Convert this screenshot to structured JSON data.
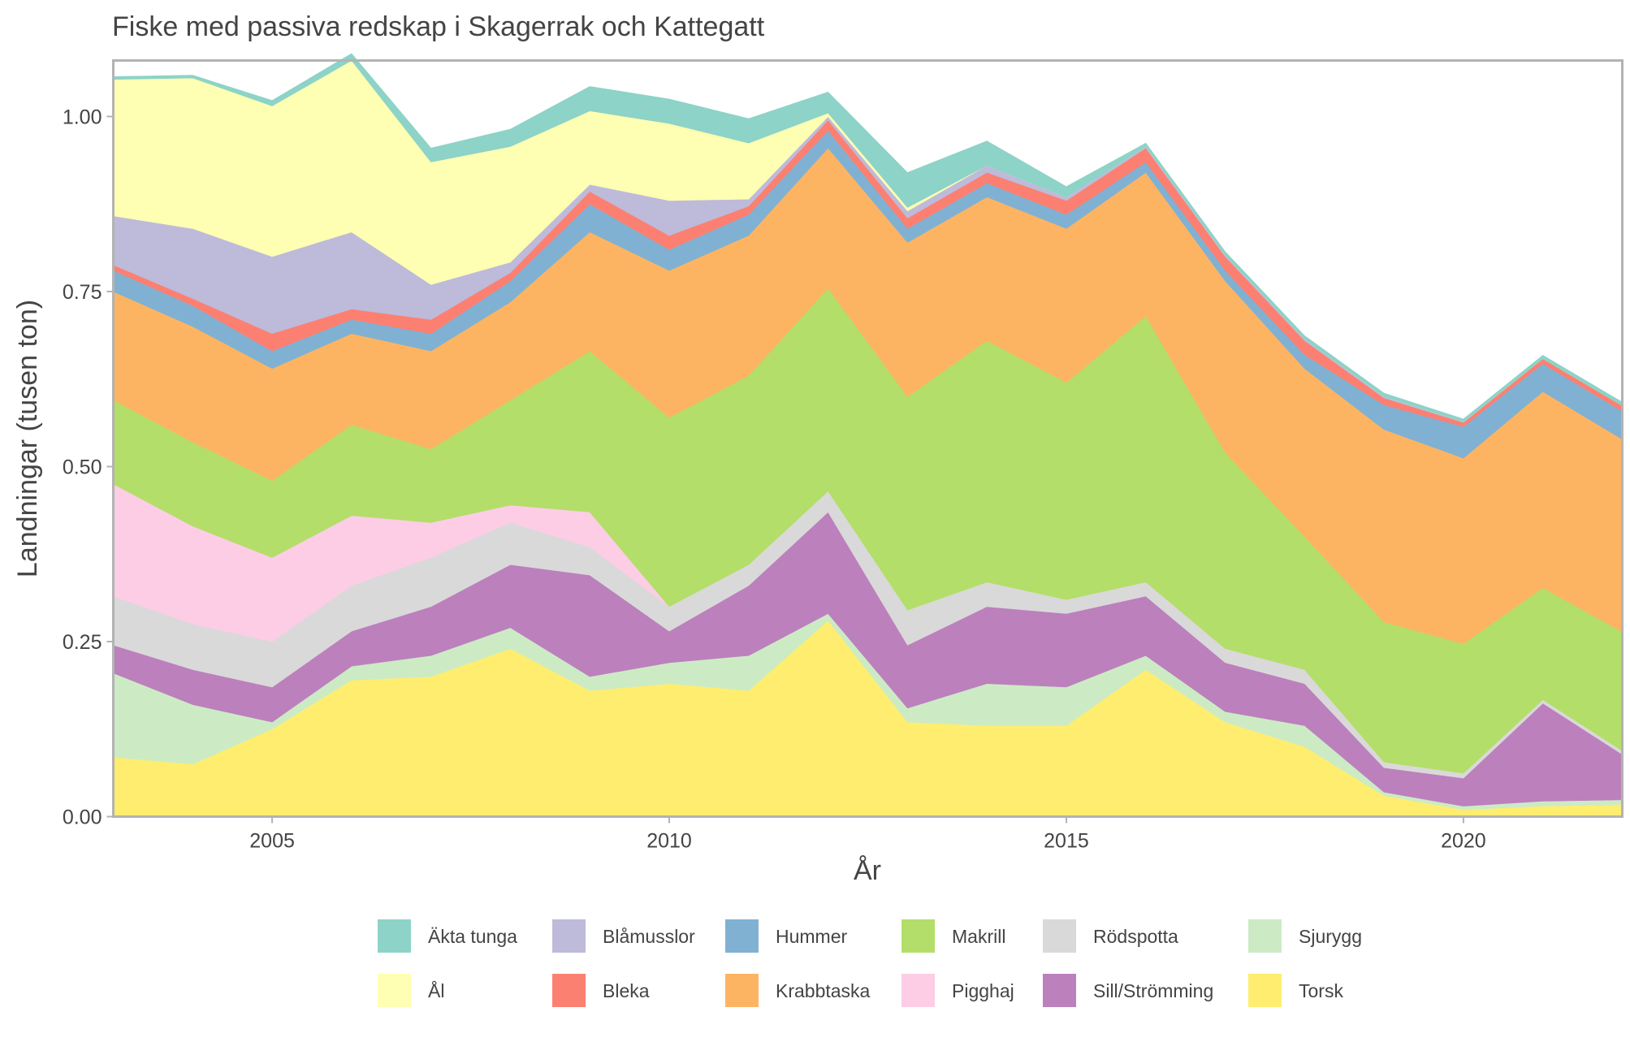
{
  "chart_data": {
    "type": "area",
    "stacked": true,
    "title": "Fiske med passiva redskap i Skagerrak och Kattegatt",
    "xlabel": "År",
    "ylabel": "Landningar (tusen ton)",
    "xlim": [
      2003,
      2022
    ],
    "ylim": [
      0,
      1.08
    ],
    "x_ticks": [
      2005,
      2010,
      2015,
      2020
    ],
    "y_ticks": [
      0,
      0.25,
      0.5,
      0.75,
      1.0
    ],
    "y_tick_labels": [
      "0.00",
      "0.25",
      "0.50",
      "0.75",
      "1.00"
    ],
    "grid": false,
    "legend_position": "bottom",
    "x": [
      2003,
      2004,
      2005,
      2006,
      2007,
      2008,
      2009,
      2010,
      2011,
      2012,
      2013,
      2014,
      2015,
      2016,
      2017,
      2018,
      2019,
      2020,
      2021,
      2022
    ],
    "series": [
      {
        "name": "Torsk",
        "color": "#FFED6F",
        "values": [
          0.085,
          0.075,
          0.125,
          0.195,
          0.2,
          0.24,
          0.18,
          0.19,
          0.18,
          0.28,
          0.135,
          0.13,
          0.13,
          0.21,
          0.135,
          0.1,
          0.03,
          0.01,
          0.015,
          0.017
        ]
      },
      {
        "name": "Sjurygg",
        "color": "#CCEBC5",
        "values": [
          0.12,
          0.085,
          0.01,
          0.02,
          0.03,
          0.03,
          0.02,
          0.03,
          0.05,
          0.01,
          0.02,
          0.06,
          0.055,
          0.02,
          0.015,
          0.03,
          0.005,
          0.005,
          0.007,
          0.007
        ]
      },
      {
        "name": "Sill/Strömming",
        "color": "#BC80BD",
        "values": [
          0.04,
          0.05,
          0.05,
          0.05,
          0.07,
          0.09,
          0.145,
          0.045,
          0.1,
          0.145,
          0.09,
          0.11,
          0.105,
          0.085,
          0.07,
          0.06,
          0.035,
          0.04,
          0.14,
          0.065
        ]
      },
      {
        "name": "Rödspotta",
        "color": "#D9D9D9",
        "values": [
          0.07,
          0.065,
          0.065,
          0.065,
          0.07,
          0.06,
          0.04,
          0.035,
          0.03,
          0.03,
          0.05,
          0.035,
          0.02,
          0.02,
          0.02,
          0.02,
          0.008,
          0.007,
          0.005,
          0.005
        ]
      },
      {
        "name": "Pigghaj",
        "color": "#FCCDE5",
        "values": [
          0.16,
          0.14,
          0.12,
          0.1,
          0.05,
          0.025,
          0.05,
          0.0,
          0.0,
          0.0,
          0.0,
          0.0,
          0.0,
          0.0,
          0.0,
          0.0,
          0.0,
          0.0,
          0.0,
          0.0
        ]
      },
      {
        "name": "Makrill",
        "color": "#B3DE69",
        "values": [
          0.12,
          0.12,
          0.11,
          0.13,
          0.105,
          0.15,
          0.23,
          0.27,
          0.27,
          0.29,
          0.305,
          0.345,
          0.31,
          0.38,
          0.28,
          0.19,
          0.2,
          0.185,
          0.16,
          0.17
        ]
      },
      {
        "name": "Krabbtaska",
        "color": "#FDB462",
        "values": [
          0.155,
          0.165,
          0.16,
          0.13,
          0.14,
          0.14,
          0.17,
          0.21,
          0.2,
          0.2,
          0.22,
          0.205,
          0.22,
          0.205,
          0.245,
          0.24,
          0.275,
          0.265,
          0.28,
          0.275
        ]
      },
      {
        "name": "Hummer",
        "color": "#80B1D3",
        "values": [
          0.03,
          0.03,
          0.025,
          0.02,
          0.025,
          0.03,
          0.04,
          0.03,
          0.03,
          0.025,
          0.02,
          0.02,
          0.02,
          0.015,
          0.015,
          0.02,
          0.035,
          0.045,
          0.04,
          0.04
        ]
      },
      {
        "name": "Bleka",
        "color": "#FB8072",
        "values": [
          0.008,
          0.01,
          0.025,
          0.015,
          0.02,
          0.012,
          0.018,
          0.02,
          0.012,
          0.015,
          0.015,
          0.015,
          0.02,
          0.02,
          0.02,
          0.02,
          0.01,
          0.006,
          0.007,
          0.008
        ]
      },
      {
        "name": "Blåmusslor",
        "color": "#BEBADA",
        "values": [
          0.07,
          0.1,
          0.11,
          0.11,
          0.05,
          0.015,
          0.01,
          0.05,
          0.01,
          0.005,
          0.01,
          0.01,
          0.005,
          0.002,
          0.002,
          0.002,
          0.002,
          0.001,
          0.0,
          0.0
        ]
      },
      {
        "name": "Ål",
        "color": "#FFFFB3",
        "values": [
          0.195,
          0.215,
          0.215,
          0.245,
          0.175,
          0.165,
          0.105,
          0.11,
          0.08,
          0.005,
          0.005,
          0.0,
          0.0,
          0.0,
          0.0,
          0.0,
          0.0,
          0.0,
          0.0,
          0.0
        ]
      },
      {
        "name": "Äkta tunga",
        "color": "#8DD3C7",
        "values": [
          0.004,
          0.004,
          0.008,
          0.01,
          0.02,
          0.025,
          0.035,
          0.035,
          0.035,
          0.03,
          0.05,
          0.035,
          0.015,
          0.005,
          0.005,
          0.005,
          0.005,
          0.004,
          0.005,
          0.005
        ]
      }
    ],
    "legend_order": [
      "Äkta tunga",
      "Ål",
      "Blåmusslor",
      "Bleka",
      "Hummer",
      "Krabbtaska",
      "Makrill",
      "Pigghaj",
      "Rödspotta",
      "Sill/Strömming",
      "Sjurygg",
      "Torsk"
    ]
  }
}
